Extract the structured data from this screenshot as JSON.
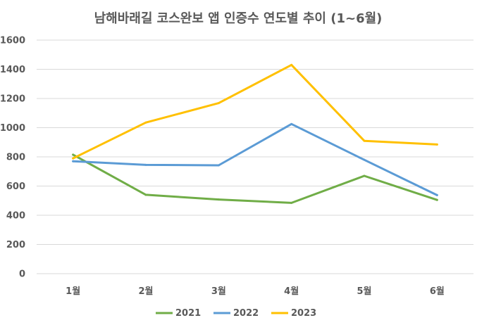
{
  "chart_data": {
    "type": "line",
    "title": "남해바래길 코스완보 앱 인증수 연도별 추이 (1~6월)",
    "xlabel": "",
    "ylabel": "",
    "categories": [
      "1월",
      "2월",
      "3월",
      "4월",
      "5월",
      "6월"
    ],
    "ylim": [
      0,
      1600
    ],
    "yticks": [
      0,
      200,
      400,
      600,
      800,
      1000,
      1200,
      1400,
      1600
    ],
    "grid": true,
    "legend_position": "bottom",
    "series": [
      {
        "name": "2021",
        "color": "#70AD47",
        "values": [
          815,
          540,
          508,
          485,
          670,
          505
        ]
      },
      {
        "name": "2022",
        "color": "#5B9BD5",
        "values": [
          770,
          745,
          742,
          1025,
          780,
          538
        ]
      },
      {
        "name": "2023",
        "color": "#FFC000",
        "values": [
          790,
          1035,
          1168,
          1430,
          910,
          885
        ]
      }
    ]
  }
}
